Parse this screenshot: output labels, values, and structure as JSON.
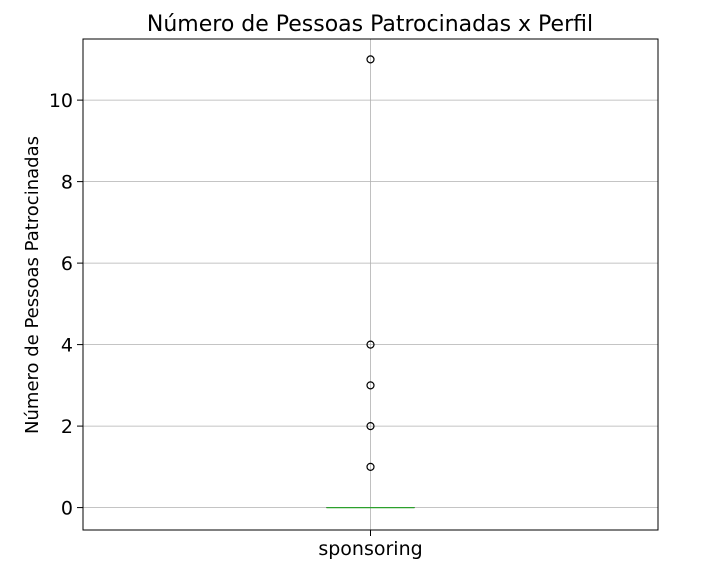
{
  "chart_data": {
    "type": "boxplot",
    "title": "Número de Pessoas Patrocinadas x Perfil",
    "xlabel": "",
    "ylabel": "Número de Pessoas Patrocinadas",
    "categories": [
      "sponsoring"
    ],
    "ylim": [
      -0.55,
      11.5
    ],
    "yticks": [
      0,
      2,
      4,
      6,
      8,
      10
    ],
    "grid": true,
    "legend": "none",
    "boxes": [
      {
        "category": "sponsoring",
        "q1": 0,
        "median": 0,
        "q3": 0,
        "whisker_low": 0,
        "whisker_high": 0,
        "outliers": [
          1,
          2,
          3,
          4,
          11
        ]
      }
    ],
    "colors": {
      "median": "#2ca02c",
      "grid": "#b0b0b0",
      "box": "#000000",
      "outlier_edge": "#000000"
    }
  }
}
